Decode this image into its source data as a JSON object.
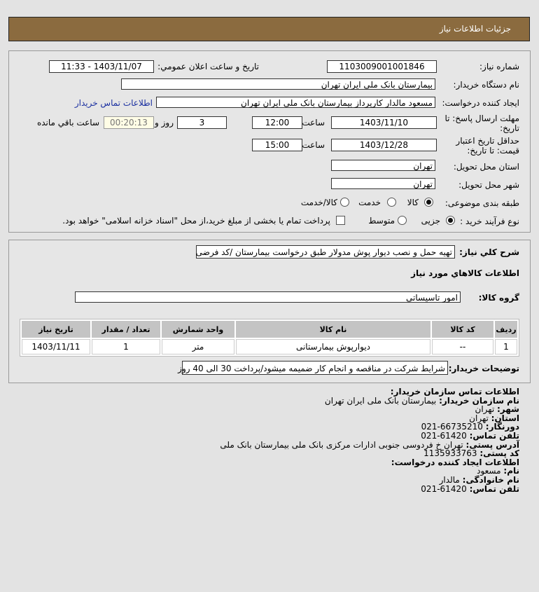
{
  "header": {
    "title": "جزئيات اطلاعات نياز"
  },
  "form": {
    "need_number_label": "شماره نياز:",
    "need_number": "1103009001001846",
    "announce_label": "تاريخ و ساعت اعلان عمومي:",
    "announce_value": "1403/11/07 - 11:33",
    "buyer_label": "نام دستگاه خريدار:",
    "buyer": "بيمارستان بانک ملی ایران تهران",
    "creator_label": "ايجاد کننده درخواست:",
    "creator": "مسعود مالدار کارپرداز بیمارستان بانک ملی ایران تهران",
    "contact_link": "اطلاعات تماس خريدار",
    "deadline_label": "مهلت ارسال پاسخ: تا تاريخ:",
    "deadline_date": "1403/11/10",
    "time_label": "ساعت",
    "deadline_time": "12:00",
    "days": "3",
    "days_label": "روز و",
    "remaining": "00:20:13",
    "remaining_label": "ساعت باقي مانده",
    "validity_label": "حداقل تاريخ اعتبار قيمت: تا تاريخ:",
    "validity_date": "1403/12/28",
    "validity_time": "15:00",
    "province_label": "استان محل تحويل:",
    "province": "تهران",
    "city_label": "شهر محل تحويل:",
    "city": "تهران",
    "category_label": "طبقه بندی موضوعی:",
    "category_options": [
      "کالا",
      "خدمت",
      "کالا/خدمت"
    ],
    "category_selected": "کالا",
    "process_label": "نوع فرآیند خرید :",
    "process_options": [
      "جزیی",
      "متوسط"
    ],
    "process_selected": "جزیی",
    "payment_note": "پرداخت تمام یا بخشی از مبلغ خرید،از محل \"اسناد خزانه اسلامی\" خواهد بود."
  },
  "details": {
    "description_label": "شرح کلي نياز:",
    "description": "تهیه حمل و نصب دیوار پوش مدولار طبق درخواست بیمارستان /کد فرضی",
    "goods_title": "اطلاعات کالاهاي مورد نياز",
    "group_label": "گروه کالا:",
    "group": "امور تاسیساتی",
    "table": {
      "headers": [
        "رديف",
        "کد کالا",
        "نام کالا",
        "واحد شمارش",
        "تعداد / مقدار",
        "تاريخ نياز"
      ],
      "rows": [
        [
          "1",
          "--",
          "دیوارپوش بیمارستانی",
          "متر",
          "1",
          "1403/11/11"
        ]
      ]
    },
    "buyer_notes_label": "توضيحات خريدار:",
    "buyer_notes": "شرایط شرکت در مناقصه و انجام کار ضمیمه میشود/پرداخت 30 الی 40 روز"
  },
  "contact": {
    "title": "اطلاعات تماس سازمان خریدار:",
    "org_label": "نام سازمان خریدار:",
    "org": "بیمارستان بانک ملی ایران تهران",
    "city_label": "شهر:",
    "city": "تهران",
    "province_label": "استان:",
    "province": "تهران",
    "fax_label": "دورنگار:",
    "fax": "66735210-021",
    "phone_label": "تلفن تماس:",
    "phone": "61420-021",
    "address_label": "آدرس پستی:",
    "address": "تهران خ فردوسی جنوبی ادارات مرکزی بانک ملی بیمارستان بانک ملی",
    "postal_label": "کد پستی:",
    "postal": "1135933763",
    "creator_title": "اطلاعات ایجاد کننده درخواست:",
    "name_label": "نام:",
    "name": "مسعود",
    "family_label": "نام خانوادگی:",
    "family": "مالدار",
    "creator_phone_label": "تلفن تماس:",
    "creator_phone": "61420-021"
  },
  "colors": {
    "header": "#8b6b3f",
    "link": "#1a2fa0"
  }
}
